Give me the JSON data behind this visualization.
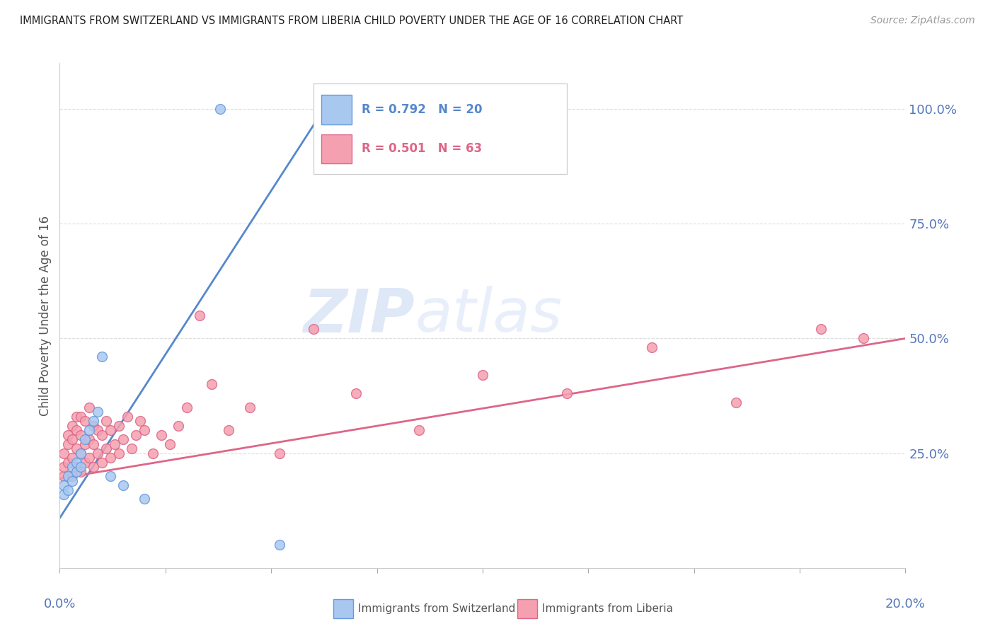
{
  "title": "IMMIGRANTS FROM SWITZERLAND VS IMMIGRANTS FROM LIBERIA CHILD POVERTY UNDER THE AGE OF 16 CORRELATION CHART",
  "source": "Source: ZipAtlas.com",
  "ylabel": "Child Poverty Under the Age of 16",
  "ytick_labels": [
    "100.0%",
    "75.0%",
    "50.0%",
    "25.0%"
  ],
  "ytick_values": [
    1.0,
    0.75,
    0.5,
    0.25
  ],
  "xlim": [
    0.0,
    0.2
  ],
  "ylim": [
    0.0,
    1.1
  ],
  "legend_r_swiss": "R = 0.792",
  "legend_n_swiss": "N = 20",
  "legend_r_liberia": "R = 0.501",
  "legend_n_liberia": "N = 63",
  "legend_label_swiss": "Immigrants from Switzerland",
  "legend_label_liberia": "Immigrants from Liberia",
  "color_swiss_fill": "#a8c8f0",
  "color_swiss_edge": "#6699dd",
  "color_liberia_fill": "#f5a0b0",
  "color_liberia_edge": "#dd6688",
  "color_swiss_line": "#5588cc",
  "color_liberia_line": "#dd6688",
  "color_axis_text": "#5577bb",
  "watermark_zip": "ZIP",
  "watermark_atlas": "atlas",
  "swiss_scatter_x": [
    0.001,
    0.001,
    0.002,
    0.002,
    0.003,
    0.003,
    0.004,
    0.004,
    0.005,
    0.005,
    0.006,
    0.007,
    0.008,
    0.009,
    0.01,
    0.012,
    0.015,
    0.02,
    0.052,
    0.038
  ],
  "swiss_scatter_y": [
    0.18,
    0.16,
    0.2,
    0.17,
    0.22,
    0.19,
    0.23,
    0.21,
    0.25,
    0.22,
    0.28,
    0.3,
    0.32,
    0.34,
    0.46,
    0.2,
    0.18,
    0.15,
    0.05,
    1.0
  ],
  "liberia_scatter_x": [
    0.001,
    0.001,
    0.001,
    0.002,
    0.002,
    0.002,
    0.003,
    0.003,
    0.003,
    0.003,
    0.004,
    0.004,
    0.004,
    0.004,
    0.005,
    0.005,
    0.005,
    0.005,
    0.006,
    0.006,
    0.006,
    0.007,
    0.007,
    0.007,
    0.008,
    0.008,
    0.008,
    0.009,
    0.009,
    0.01,
    0.01,
    0.011,
    0.011,
    0.012,
    0.012,
    0.013,
    0.014,
    0.014,
    0.015,
    0.016,
    0.017,
    0.018,
    0.019,
    0.02,
    0.022,
    0.024,
    0.026,
    0.028,
    0.03,
    0.033,
    0.036,
    0.04,
    0.045,
    0.052,
    0.06,
    0.07,
    0.085,
    0.1,
    0.12,
    0.14,
    0.16,
    0.18,
    0.19
  ],
  "liberia_scatter_y": [
    0.2,
    0.22,
    0.25,
    0.23,
    0.27,
    0.29,
    0.2,
    0.24,
    0.28,
    0.31,
    0.22,
    0.26,
    0.3,
    0.33,
    0.21,
    0.25,
    0.29,
    0.33,
    0.23,
    0.27,
    0.32,
    0.24,
    0.28,
    0.35,
    0.22,
    0.27,
    0.31,
    0.25,
    0.3,
    0.23,
    0.29,
    0.26,
    0.32,
    0.24,
    0.3,
    0.27,
    0.25,
    0.31,
    0.28,
    0.33,
    0.26,
    0.29,
    0.32,
    0.3,
    0.25,
    0.29,
    0.27,
    0.31,
    0.35,
    0.55,
    0.4,
    0.3,
    0.35,
    0.25,
    0.52,
    0.38,
    0.3,
    0.42,
    0.38,
    0.48,
    0.36,
    0.52,
    0.5
  ],
  "swiss_line_x": [
    -0.002,
    0.066
  ],
  "swiss_line_y": [
    0.08,
    1.05
  ],
  "liberia_line_x": [
    0.0,
    0.2
  ],
  "liberia_line_y": [
    0.195,
    0.5
  ],
  "grid_color": "#dddddd",
  "background_color": "#ffffff"
}
